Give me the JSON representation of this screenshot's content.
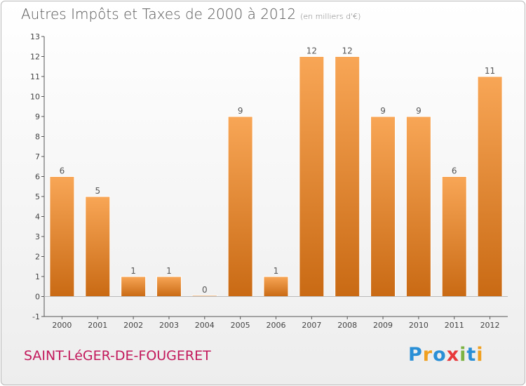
{
  "header": {
    "title": "Autres Impôts et Taxes de 2000 à 2012",
    "subtitle": "(en milliers d'€)"
  },
  "footer": {
    "place": "SAINT-LéGER-DE-FOUGERET",
    "logo_letters": [
      "P",
      "r",
      "o",
      "x",
      "i",
      "t",
      "i"
    ],
    "logo_colors": [
      "#2a8fd6",
      "#f0a020",
      "#2a8fd6",
      "#e8383b",
      "#7cb342",
      "#2a8fd6",
      "#f0a020"
    ]
  },
  "colors": {
    "bar_top": "#f8a656",
    "bar_bottom": "#c96a14",
    "axis": "#555555",
    "grid": "#dddddd"
  },
  "chart_data": {
    "type": "bar",
    "title": "Autres Impôts et Taxes de 2000 à 2012",
    "subtitle": "(en milliers d'€)",
    "categories": [
      "2000",
      "2001",
      "2002",
      "2003",
      "2004",
      "2005",
      "2006",
      "2007",
      "2008",
      "2009",
      "2010",
      "2011",
      "2012"
    ],
    "values": [
      6,
      5,
      1,
      1,
      0,
      9,
      1,
      12,
      12,
      9,
      9,
      6,
      11
    ],
    "data_labels": [
      "6",
      "5",
      "1",
      "1",
      "0",
      "9",
      "1",
      "12",
      "12",
      "9",
      "9",
      "6",
      "11"
    ],
    "ylim": [
      -1,
      13
    ],
    "yticks": [
      "-1",
      "0",
      "1",
      "2",
      "3",
      "4",
      "5",
      "6",
      "7",
      "8",
      "9",
      "10",
      "11",
      "12",
      "13"
    ],
    "xlabel": "",
    "ylabel": "",
    "grid": false,
    "legend": false
  }
}
